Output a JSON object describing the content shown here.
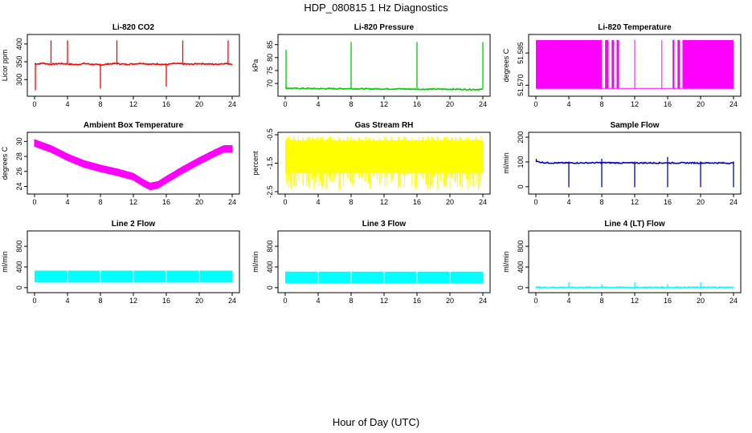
{
  "figure": {
    "title": "HDP_080815  1 Hz Diagnostics",
    "xlabel": "Hour of Day (UTC)"
  },
  "chart_data": [
    {
      "type": "line",
      "title": "Li-820 CO2",
      "ylabel": "Licor ppm",
      "color": "#ff0000",
      "xlim": [
        0,
        24
      ],
      "ylim": [
        260,
        420
      ],
      "yticks": [
        "300",
        "350",
        "400"
      ],
      "xticks": [
        "0",
        "4",
        "8",
        "12",
        "16",
        "20",
        "24"
      ],
      "x": [
        0,
        0.5,
        1,
        2,
        3,
        4,
        5,
        6,
        7,
        8,
        9,
        10,
        11,
        12,
        13,
        14,
        15,
        16,
        17,
        18,
        19,
        20,
        21,
        22,
        23,
        24
      ],
      "values": [
        345,
        344,
        346,
        343,
        345,
        344,
        342,
        345,
        343,
        341,
        344,
        345,
        343,
        344,
        346,
        343,
        344,
        342,
        345,
        344,
        343,
        345,
        344,
        343,
        345,
        344
      ],
      "spikes": [
        {
          "x": 0.1,
          "y": 270
        },
        {
          "x": 2,
          "y": 410
        },
        {
          "x": 4,
          "y": 410
        },
        {
          "x": 8,
          "y": 275
        },
        {
          "x": 10,
          "y": 410
        },
        {
          "x": 16,
          "y": 280
        },
        {
          "x": 18,
          "y": 410
        },
        {
          "x": 23.5,
          "y": 410
        }
      ]
    },
    {
      "type": "line",
      "title": "Li-820 Pressure",
      "ylabel": "kPa",
      "color": "#00cc00",
      "xlim": [
        0,
        24
      ],
      "ylim": [
        66,
        88
      ],
      "yticks": [
        "70",
        "75",
        "80",
        "85"
      ],
      "xticks": [
        "0",
        "4",
        "8",
        "12",
        "16",
        "20",
        "24"
      ],
      "x": [
        0,
        1,
        2,
        4,
        6,
        8,
        10,
        12,
        14,
        16,
        18,
        20,
        22,
        24
      ],
      "values": [
        68.2,
        68.1,
        68.1,
        68.0,
        68.0,
        68.0,
        67.9,
        67.9,
        67.9,
        67.8,
        67.8,
        67.8,
        67.7,
        67.7
      ],
      "spikes": [
        {
          "x": 0.1,
          "y": 83
        },
        {
          "x": 8,
          "y": 86
        },
        {
          "x": 16,
          "y": 86
        },
        {
          "x": 24,
          "y": 86
        }
      ]
    },
    {
      "type": "band",
      "title": "Li-820 Temperature",
      "ylabel": "degrees C",
      "color": "#ff00ff",
      "xlim": [
        0,
        24
      ],
      "ylim": [
        51.566,
        51.5925
      ],
      "yticks": [
        "51.570",
        "51.585"
      ],
      "xticks": [
        "0",
        "4",
        "8",
        "12",
        "16",
        "20",
        "24"
      ],
      "band_low": 51.5685,
      "band_high": 51.591,
      "segments": [
        [
          0,
          8
        ],
        [
          8.4,
          8.8
        ],
        [
          9.2,
          9.5
        ],
        [
          9.8,
          10.1
        ],
        [
          16.6,
          16.8
        ],
        [
          17.2,
          17.5
        ],
        [
          17.8,
          24
        ]
      ],
      "gap_value": 51.5685
    },
    {
      "type": "band",
      "title": "Ambient Box Temperature",
      "ylabel": "degrees C",
      "color": "#ff00ff",
      "xlim": [
        0,
        24
      ],
      "ylim": [
        23.3,
        30.9
      ],
      "yticks": [
        "24",
        "26",
        "28",
        "30"
      ],
      "xticks": [
        "0",
        "4",
        "8",
        "12",
        "16",
        "20",
        "24"
      ],
      "x": [
        0,
        2,
        4,
        6,
        8,
        10,
        12,
        13,
        14,
        15,
        16,
        18,
        20,
        22,
        23,
        24
      ],
      "values": [
        29.8,
        29.0,
        27.9,
        27.0,
        26.4,
        25.9,
        25.3,
        24.6,
        24.0,
        24.2,
        24.9,
        26.2,
        27.4,
        28.5,
        29.0,
        29.0
      ],
      "half_width": 0.45
    },
    {
      "type": "band",
      "title": "Gas Stream RH",
      "ylabel": "percent",
      "color": "#ffff00",
      "xlim": [
        0,
        24
      ],
      "ylim": [
        -2.5,
        -0.5
      ],
      "yticks": [
        "-2.5",
        "-1.5",
        "-0.5"
      ],
      "xticks": [
        "0",
        "4",
        "8",
        "12",
        "16",
        "20",
        "24"
      ],
      "band_low": -1.85,
      "band_high": -0.7,
      "noise_low": -2.45
    },
    {
      "type": "line",
      "title": "Sample Flow",
      "ylabel": "ml/min",
      "color": "#0000cc",
      "xlim": [
        0,
        24
      ],
      "ylim": [
        -20,
        210
      ],
      "yticks": [
        "0",
        "100",
        "200"
      ],
      "xticks": [
        "0",
        "4",
        "8",
        "12",
        "16",
        "20",
        "24"
      ],
      "x": [
        0,
        1,
        2,
        4,
        6,
        8,
        10,
        12,
        14,
        16,
        18,
        20,
        22,
        24
      ],
      "values": [
        102,
        97,
        96,
        96,
        96,
        97,
        96,
        96,
        96,
        96,
        96,
        96,
        96,
        95
      ],
      "spikes": [
        {
          "x": 0.05,
          "y": 113
        },
        {
          "x": 4,
          "y": -2
        },
        {
          "x": 8,
          "y": -2
        },
        {
          "x": 8,
          "y": 113
        },
        {
          "x": 12,
          "y": -2
        },
        {
          "x": 16,
          "y": -2
        },
        {
          "x": 16,
          "y": 120
        },
        {
          "x": 20,
          "y": -2
        },
        {
          "x": 24,
          "y": -2
        }
      ]
    },
    {
      "type": "band",
      "title": "Line 2 Flow",
      "ylabel": "ml/min",
      "color": "#00ffff",
      "xlim": [
        0,
        24
      ],
      "ylim": [
        -50,
        1050
      ],
      "yticks": [
        "0",
        "400",
        "800"
      ],
      "xticks": [
        "0",
        "4",
        "8",
        "12",
        "16",
        "20",
        "24"
      ],
      "band_low": 100,
      "band_high": 330,
      "gaps": [
        4,
        8,
        12,
        16,
        20
      ]
    },
    {
      "type": "band",
      "title": "Line 3 Flow",
      "ylabel": "ml/min",
      "color": "#00ffff",
      "xlim": [
        0,
        24
      ],
      "ylim": [
        -50,
        1050
      ],
      "yticks": [
        "0",
        "400",
        "800"
      ],
      "xticks": [
        "0",
        "4",
        "8",
        "12",
        "16",
        "20",
        "24"
      ],
      "band_low": 80,
      "band_high": 310,
      "gaps": [
        4,
        8,
        12,
        16,
        20
      ]
    },
    {
      "type": "line",
      "title": "Line 4 (LT) Flow",
      "ylabel": "ml/min",
      "color": "#00ffff",
      "xlim": [
        0,
        24
      ],
      "ylim": [
        -50,
        1050
      ],
      "yticks": [
        "0",
        "400",
        "800"
      ],
      "xticks": [
        "0",
        "4",
        "8",
        "12",
        "16",
        "20",
        "24"
      ],
      "x": [
        0,
        24
      ],
      "values": [
        5,
        5
      ],
      "spikes": [
        {
          "x": 4,
          "y": 110
        },
        {
          "x": 8,
          "y": 70
        },
        {
          "x": 12,
          "y": 110
        },
        {
          "x": 16,
          "y": 70
        },
        {
          "x": 20,
          "y": 110
        }
      ]
    }
  ]
}
